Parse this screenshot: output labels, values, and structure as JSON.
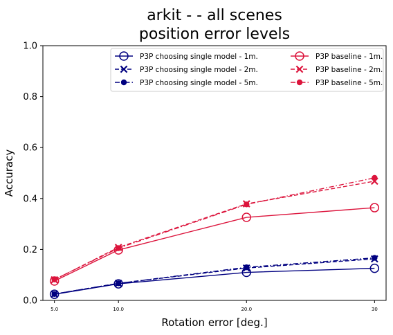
{
  "chart_data": {
    "type": "line",
    "title": "arkit -  - all scenes\nposition error levels",
    "xlabel": "Rotation error [deg.]",
    "ylabel": "Accuracy",
    "x": [
      5,
      10,
      20,
      30
    ],
    "x_tick_labels": [
      "5.0",
      "10.0",
      "20.0",
      "30"
    ],
    "xlim": [
      4.1,
      30.9
    ],
    "ylim": [
      0.0,
      1.0
    ],
    "y_ticks": [
      0.0,
      0.2,
      0.4,
      0.6,
      0.8,
      1.0
    ],
    "y_tick_labels": [
      "0.0",
      "0.2",
      "0.4",
      "0.6",
      "0.8",
      "1.0"
    ],
    "grid": false,
    "legend_position": "top-right",
    "legend_columns": 2,
    "colors": {
      "navy": "#000080",
      "crimson": "#dc143c"
    },
    "series": [
      {
        "name": "P3P choosing single model - 1m.",
        "values": [
          0.024,
          0.065,
          0.11,
          0.126
        ],
        "color": "#000080",
        "line": "solid",
        "marker": "open-circle"
      },
      {
        "name": "P3P choosing single model - 2m.",
        "values": [
          0.025,
          0.067,
          0.127,
          0.163
        ],
        "color": "#000080",
        "line": "dashed",
        "marker": "x"
      },
      {
        "name": "P3P choosing single model - 5m.",
        "values": [
          0.025,
          0.067,
          0.13,
          0.167
        ],
        "color": "#000080",
        "line": "dashdot",
        "marker": "dot"
      },
      {
        "name": "P3P baseline - 1m.",
        "values": [
          0.076,
          0.198,
          0.326,
          0.364
        ],
        "color": "#dc143c",
        "line": "solid",
        "marker": "open-circle"
      },
      {
        "name": "P3P baseline - 2m.",
        "values": [
          0.081,
          0.208,
          0.379,
          0.468
        ],
        "color": "#dc143c",
        "line": "dashed",
        "marker": "x"
      },
      {
        "name": "P3P baseline - 5m.",
        "values": [
          0.082,
          0.205,
          0.377,
          0.481
        ],
        "color": "#dc143c",
        "line": "dashdot",
        "marker": "dot"
      }
    ]
  }
}
